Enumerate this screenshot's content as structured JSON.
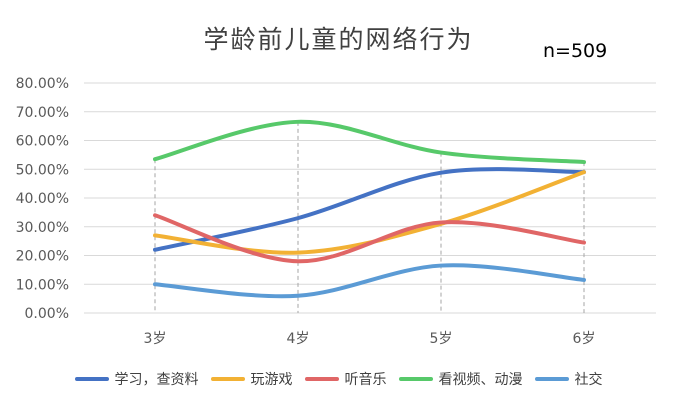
{
  "title": "学龄前儿童的网络行为",
  "sample_note": "n=509",
  "chart_data": {
    "type": "line",
    "title": "学龄前儿童的网络行为",
    "annotation": "n=509",
    "categories": [
      "3岁",
      "4岁",
      "5岁",
      "6岁"
    ],
    "ylim": [
      0,
      80
    ],
    "y_unit": "%",
    "y_ticks": [
      "0.00%",
      "10.00%",
      "20.00%",
      "30.00%",
      "40.00%",
      "50.00%",
      "60.00%",
      "70.00%",
      "80.00%"
    ],
    "grid": true,
    "legend_position": "bottom",
    "smoothed": true,
    "series": [
      {
        "name": "学习，查资料",
        "color": "#4472C4",
        "values": [
          22.0,
          33.0,
          48.8,
          49.0
        ]
      },
      {
        "name": "玩游戏",
        "color": "#F2B134",
        "values": [
          27.0,
          21.0,
          31.0,
          49.0
        ]
      },
      {
        "name": "听音乐",
        "color": "#E06666",
        "values": [
          34.0,
          18.0,
          31.5,
          24.5
        ]
      },
      {
        "name": "看视频、动漫",
        "color": "#57C96A",
        "values": [
          53.5,
          66.5,
          55.8,
          52.5
        ]
      },
      {
        "name": "社交",
        "color": "#5B9BD5",
        "values": [
          10.0,
          6.0,
          16.5,
          11.5
        ]
      }
    ]
  }
}
